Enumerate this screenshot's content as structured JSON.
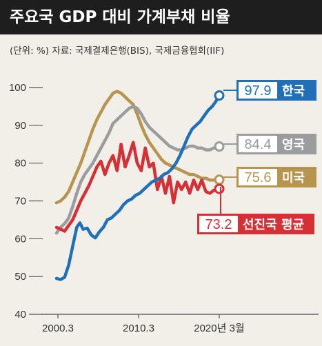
{
  "header": {
    "title": "주요국 GDP 대비 가계부채 비율",
    "source": "(단위: %) 자료: 국제결제은행(BIS), 국제금융협회(IIF)"
  },
  "colors": {
    "korea": "#1f6fb9",
    "uk": "#9a9c9d",
    "us": "#b8954f",
    "advanced": "#d62f35"
  },
  "chart_data": {
    "type": "line",
    "ylim": [
      40,
      100
    ],
    "y_ticks": [
      100,
      90,
      80,
      70,
      60,
      50,
      40
    ],
    "x_ticks": [
      {
        "label": "2000.3",
        "x": 2000.17
      },
      {
        "label": "2010.3",
        "x": 2010.17
      },
      {
        "label": "2020년 3월",
        "x": 2020.17
      }
    ],
    "xlim": [
      2000.17,
      2020.17
    ],
    "series": [
      {
        "name": "한국",
        "color_key": "korea",
        "end_label": "97.9",
        "points": [
          [
            2000.0,
            49.5
          ],
          [
            2000.5,
            49.2
          ],
          [
            2001.0,
            49.8
          ],
          [
            2001.5,
            53
          ],
          [
            2002.0,
            58
          ],
          [
            2002.5,
            63
          ],
          [
            2002.9,
            64.2
          ],
          [
            2003.3,
            62.5
          ],
          [
            2003.8,
            62.8
          ],
          [
            2004.3,
            61
          ],
          [
            2004.8,
            60.2
          ],
          [
            2005.3,
            61.8
          ],
          [
            2005.8,
            63
          ],
          [
            2006.3,
            65
          ],
          [
            2006.8,
            65.5
          ],
          [
            2007.3,
            66.5
          ],
          [
            2007.8,
            67.5
          ],
          [
            2008.3,
            69
          ],
          [
            2008.8,
            70
          ],
          [
            2009.3,
            70.5
          ],
          [
            2009.8,
            71.5
          ],
          [
            2010.3,
            72
          ],
          [
            2010.8,
            73
          ],
          [
            2011.3,
            74
          ],
          [
            2011.8,
            75
          ],
          [
            2012.3,
            75.5
          ],
          [
            2012.8,
            76
          ],
          [
            2013.3,
            77
          ],
          [
            2013.8,
            77.5
          ],
          [
            2014.3,
            78.5
          ],
          [
            2014.8,
            80
          ],
          [
            2015.3,
            82
          ],
          [
            2015.8,
            84.5
          ],
          [
            2016.3,
            87
          ],
          [
            2016.8,
            89
          ],
          [
            2017.3,
            90
          ],
          [
            2017.8,
            91
          ],
          [
            2018.3,
            92.5
          ],
          [
            2018.8,
            94
          ],
          [
            2019.3,
            95
          ],
          [
            2019.8,
            96.5
          ],
          [
            2020.17,
            97.9
          ]
        ]
      },
      {
        "name": "영국",
        "color_key": "uk",
        "end_label": "84.4",
        "points": [
          [
            2000.0,
            61.5
          ],
          [
            2000.5,
            63
          ],
          [
            2001.0,
            64
          ],
          [
            2001.5,
            65.5
          ],
          [
            2002.0,
            68.5
          ],
          [
            2002.5,
            72
          ],
          [
            2003.0,
            75
          ],
          [
            2003.5,
            77
          ],
          [
            2004.0,
            78.5
          ],
          [
            2004.5,
            80
          ],
          [
            2005.0,
            82
          ],
          [
            2005.5,
            84
          ],
          [
            2006.0,
            86
          ],
          [
            2006.5,
            88
          ],
          [
            2007.0,
            90.5
          ],
          [
            2007.5,
            91.5
          ],
          [
            2008.0,
            92.5
          ],
          [
            2008.5,
            93.5
          ],
          [
            2009.0,
            94.5
          ],
          [
            2009.5,
            95
          ],
          [
            2010.0,
            94.5
          ],
          [
            2010.5,
            93
          ],
          [
            2011.0,
            91
          ],
          [
            2011.5,
            89.5
          ],
          [
            2012.0,
            88.5
          ],
          [
            2012.5,
            87.5
          ],
          [
            2013.0,
            86.5
          ],
          [
            2013.5,
            85.5
          ],
          [
            2014.0,
            84.5
          ],
          [
            2014.5,
            84
          ],
          [
            2015.0,
            83.5
          ],
          [
            2015.5,
            83.5
          ],
          [
            2016.0,
            84
          ],
          [
            2016.5,
            84.5
          ],
          [
            2017.0,
            84.5
          ],
          [
            2017.5,
            84
          ],
          [
            2018.0,
            84
          ],
          [
            2018.5,
            83.5
          ],
          [
            2019.0,
            83.5
          ],
          [
            2019.5,
            84
          ],
          [
            2020.17,
            84.4
          ]
        ]
      },
      {
        "name": "미국",
        "color_key": "us",
        "end_label": "75.6",
        "points": [
          [
            2000.0,
            69.5
          ],
          [
            2000.5,
            70
          ],
          [
            2001.0,
            71
          ],
          [
            2001.5,
            72.5
          ],
          [
            2002.0,
            75
          ],
          [
            2002.5,
            77.5
          ],
          [
            2003.0,
            80
          ],
          [
            2003.5,
            83
          ],
          [
            2004.0,
            86
          ],
          [
            2004.5,
            89
          ],
          [
            2005.0,
            91.5
          ],
          [
            2005.5,
            93.5
          ],
          [
            2006.0,
            95.5
          ],
          [
            2006.5,
            97
          ],
          [
            2007.0,
            98.5
          ],
          [
            2007.5,
            99
          ],
          [
            2008.0,
            98.5
          ],
          [
            2008.5,
            97.5
          ],
          [
            2009.0,
            96.5
          ],
          [
            2009.5,
            95.5
          ],
          [
            2010.0,
            93
          ],
          [
            2010.5,
            90
          ],
          [
            2011.0,
            87.5
          ],
          [
            2011.5,
            85.5
          ],
          [
            2012.0,
            84
          ],
          [
            2012.5,
            82.5
          ],
          [
            2013.0,
            81
          ],
          [
            2013.5,
            80
          ],
          [
            2014.0,
            79.5
          ],
          [
            2014.5,
            79
          ],
          [
            2015.0,
            78.5
          ],
          [
            2015.5,
            78
          ],
          [
            2016.0,
            77.5
          ],
          [
            2016.5,
            77
          ],
          [
            2017.0,
            77
          ],
          [
            2017.5,
            76.5
          ],
          [
            2018.0,
            76
          ],
          [
            2018.5,
            76
          ],
          [
            2019.0,
            75.5
          ],
          [
            2019.5,
            75.5
          ],
          [
            2020.17,
            75.6
          ]
        ]
      },
      {
        "name": "선진국 평균",
        "color_key": "advanced",
        "end_label": "73.2",
        "points": [
          [
            2000.0,
            63
          ],
          [
            2000.5,
            62.5
          ],
          [
            2001.0,
            62
          ],
          [
            2001.5,
            63.5
          ],
          [
            2002.0,
            65
          ],
          [
            2002.5,
            67.5
          ],
          [
            2003.0,
            70
          ],
          [
            2003.5,
            72
          ],
          [
            2004.0,
            74
          ],
          [
            2004.5,
            76.5
          ],
          [
            2005.0,
            79
          ],
          [
            2005.5,
            80.5
          ],
          [
            2006.0,
            77
          ],
          [
            2006.5,
            80
          ],
          [
            2007.0,
            82
          ],
          [
            2007.5,
            78
          ],
          [
            2008.0,
            85
          ],
          [
            2008.5,
            79
          ],
          [
            2009.0,
            82
          ],
          [
            2009.5,
            85.5
          ],
          [
            2010.0,
            80
          ],
          [
            2010.5,
            78
          ],
          [
            2011.0,
            84
          ],
          [
            2011.5,
            79
          ],
          [
            2012.0,
            80
          ],
          [
            2012.5,
            73
          ],
          [
            2013.0,
            76.5
          ],
          [
            2013.5,
            72
          ],
          [
            2014.0,
            76.5
          ],
          [
            2014.5,
            69.5
          ],
          [
            2015.0,
            75
          ],
          [
            2015.5,
            73
          ],
          [
            2016.0,
            75
          ],
          [
            2016.5,
            72
          ],
          [
            2017.0,
            75.5
          ],
          [
            2017.5,
            73
          ],
          [
            2018.0,
            75.5
          ],
          [
            2018.5,
            72.5
          ],
          [
            2019.0,
            72
          ],
          [
            2019.5,
            72.8
          ],
          [
            2020.17,
            73.2
          ]
        ]
      }
    ],
    "labels": [
      {
        "series": "한국",
        "value": "97.9",
        "name": "한국",
        "color_key": "korea"
      },
      {
        "series": "영국",
        "value": "84.4",
        "name": "영국",
        "color_key": "uk"
      },
      {
        "series": "미국",
        "value": "75.6",
        "name": "미국",
        "color_key": "us"
      },
      {
        "series": "선진국 평균",
        "value": "73.2",
        "name": "선진국 평균",
        "color_key": "advanced"
      }
    ]
  }
}
